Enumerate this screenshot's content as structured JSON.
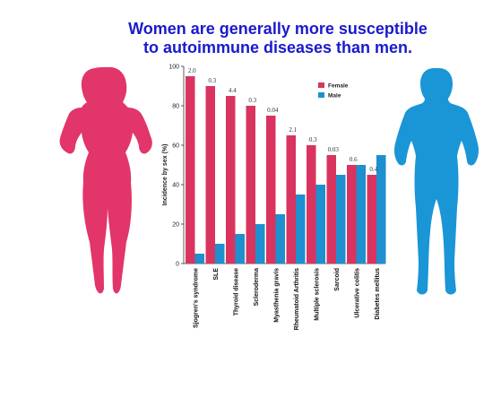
{
  "title": {
    "line1": "Women are generally more susceptible",
    "line2": "to autoimmune diseases than men."
  },
  "colors": {
    "female": "#d8345f",
    "male": "#1e8fcf",
    "title": "#1a1acc",
    "female_figure": "#e2356a",
    "male_figure": "#1a96d6"
  },
  "chart_data": {
    "type": "bar",
    "ylabel": "Incidence by sex (%)",
    "ylim": [
      0,
      100
    ],
    "yticks": [
      0,
      20,
      40,
      60,
      80,
      100
    ],
    "grid": false,
    "legend_position": "top-right",
    "categories": [
      "Sjogren's syndrome",
      "SLE",
      "Thyroid disease",
      "Scleroderma",
      "Myasthenia gravis",
      "Rheumatoid Arthritis",
      "Multiple sclerosis",
      "Sarcoid",
      "Ulcerative colitis",
      "Diabetes mellitus"
    ],
    "category_display": [
      "Sjogren's syndrome",
      "SLE",
      "Thyroid disease",
      "Scleroderma",
      "Myasthenia gravis",
      "Rheumatoid Arthritis",
      "Multiple sclerosis",
      "Sarcoid",
      "Ulcerative colitis",
      "Diabetes mellitus"
    ],
    "annotations": [
      "2.0",
      "0.3",
      "4.4",
      "0.3",
      "0.04",
      "2.1",
      "0.3",
      "0.03",
      "0.6",
      "0.4"
    ],
    "series": [
      {
        "name": "Female",
        "values": [
          95,
          90,
          85,
          80,
          75,
          65,
          60,
          55,
          50,
          45
        ]
      },
      {
        "name": "Male",
        "values": [
          5,
          10,
          15,
          20,
          25,
          35,
          40,
          45,
          50,
          55
        ]
      }
    ]
  }
}
